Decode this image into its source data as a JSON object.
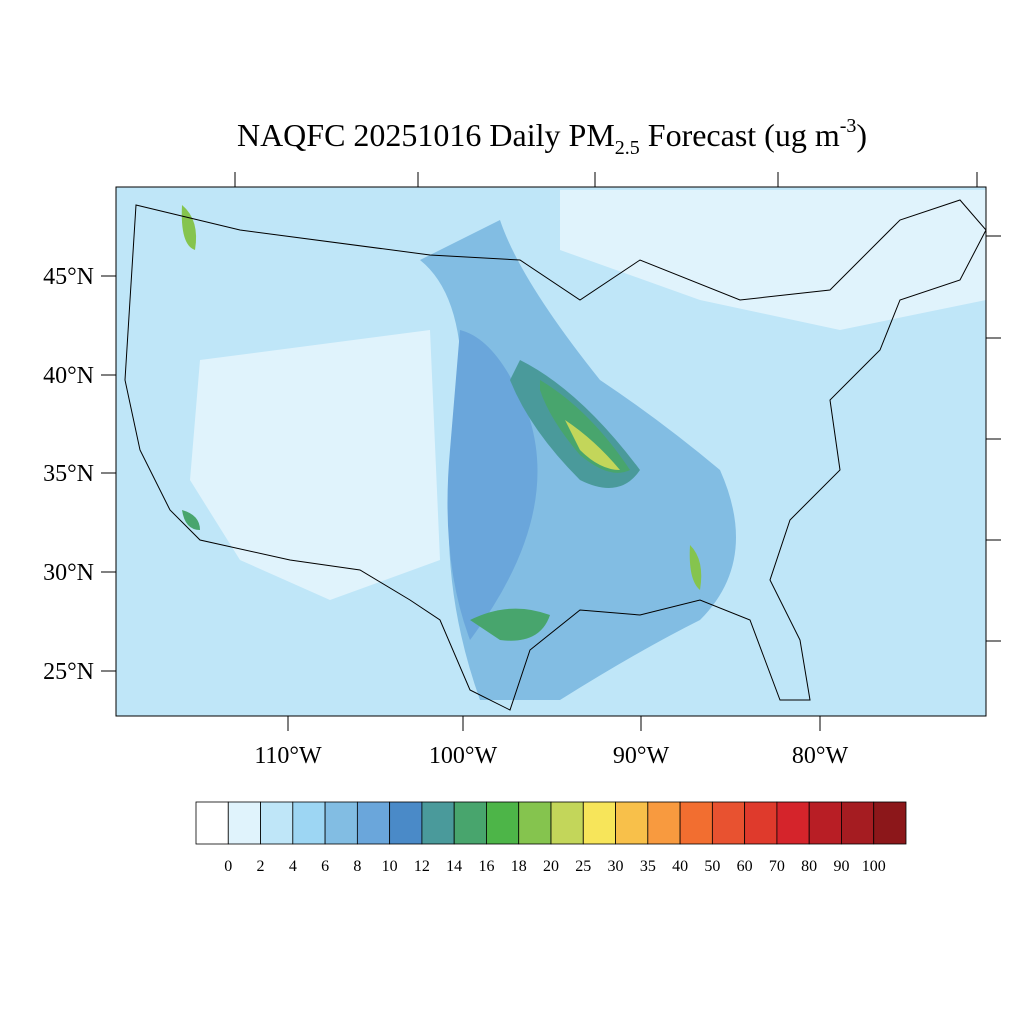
{
  "title": {
    "main": "NAQFC 20251016 Daily PM",
    "subscript": "2.5",
    "rest": " Forecast (ug m",
    "superscript": "-3",
    "end": ")"
  },
  "map": {
    "lat_labels": [
      "45°N",
      "40°N",
      "35°N",
      "30°N",
      "25°N"
    ],
    "lon_labels": [
      "110°W",
      "100°W",
      "90°W",
      "80°W"
    ]
  },
  "colorbar": {
    "colors": [
      "#ffffff",
      "#e0f3fc",
      "#bfe6f8",
      "#9dd6f3",
      "#82bde3",
      "#6aa6db",
      "#4a8ac8",
      "#4a9a9b",
      "#48a56d",
      "#4db548",
      "#85c44e",
      "#c3d65a",
      "#f7e55a",
      "#f8c04a",
      "#f89a3f",
      "#f26e30",
      "#e85230",
      "#df3a2c",
      "#d5242b",
      "#b81e25",
      "#a51c21",
      "#8c171a"
    ],
    "labels": [
      "0",
      "2",
      "4",
      "6",
      "8",
      "10",
      "12",
      "14",
      "16",
      "18",
      "20",
      "25",
      "30",
      "35",
      "40",
      "50",
      "60",
      "70",
      "80",
      "90",
      "100"
    ]
  }
}
